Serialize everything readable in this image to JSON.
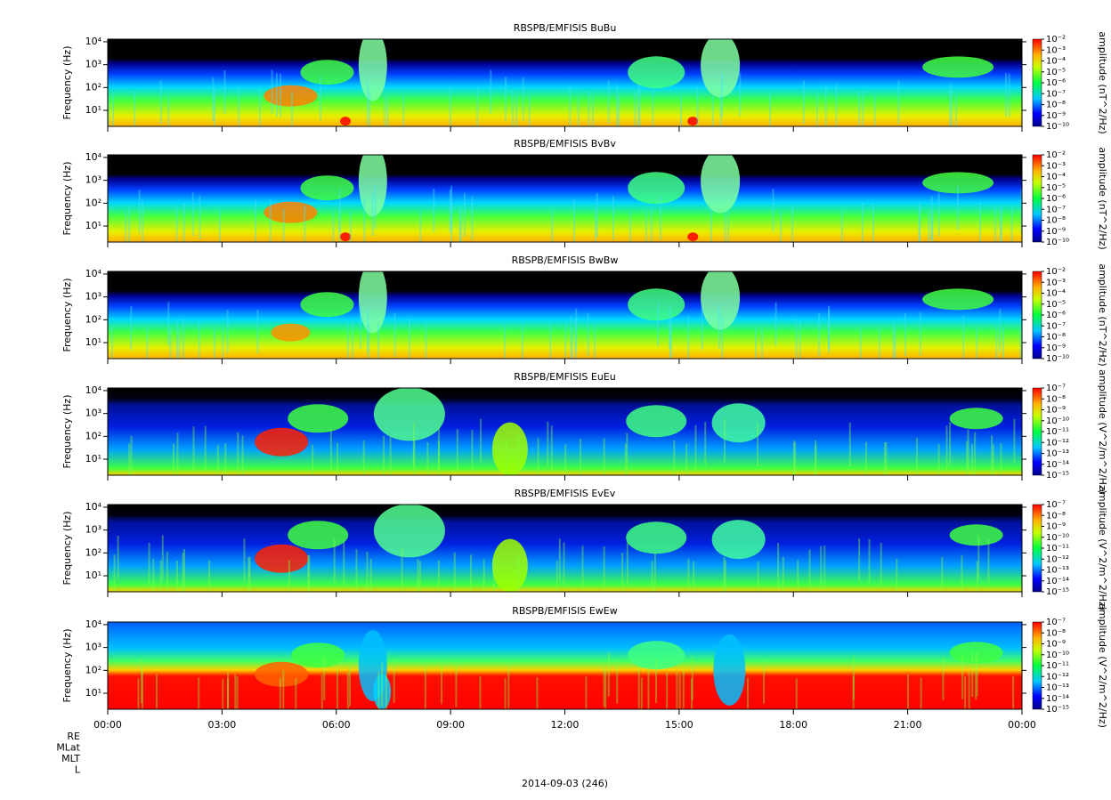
{
  "chart_data": [
    {
      "type": "spectrogram",
      "title": "RBSPB/EMFISIS  BuBu",
      "y_label": "Frequency (Hz)",
      "log_y": true,
      "ylim": [
        2,
        13000
      ],
      "yticks": [
        {
          "value": 10,
          "label": "10¹"
        },
        {
          "value": 100,
          "label": "10²"
        },
        {
          "value": 1000,
          "label": "10³"
        },
        {
          "value": 10000,
          "label": "10⁴"
        }
      ],
      "colorbar_label": "amplitude (nT^2/Hz)",
      "zlim": [
        1e-10,
        0.01
      ],
      "zticks": [
        {
          "value": 1e-10,
          "label": "10⁻¹⁰"
        },
        {
          "value": 1e-09,
          "label": "10⁻⁹"
        },
        {
          "value": 1e-08,
          "label": "10⁻⁸"
        },
        {
          "value": 1e-07,
          "label": "10⁻⁷"
        },
        {
          "value": 1e-06,
          "label": "10⁻⁶"
        },
        {
          "value": 1e-05,
          "label": "10⁻⁵"
        },
        {
          "value": 0.0001,
          "label": "10⁻⁴"
        },
        {
          "value": 0.001,
          "label": "10⁻³"
        },
        {
          "value": 0.01,
          "label": "10⁻²"
        }
      ]
    },
    {
      "type": "spectrogram",
      "title": "RBSPB/EMFISIS  BvBv",
      "y_label": "Frequency (Hz)",
      "log_y": true,
      "ylim": [
        2,
        13000
      ],
      "yticks": [
        {
          "value": 10,
          "label": "10¹"
        },
        {
          "value": 100,
          "label": "10²"
        },
        {
          "value": 1000,
          "label": "10³"
        },
        {
          "value": 10000,
          "label": "10⁴"
        }
      ],
      "colorbar_label": "amplitude (nT^2/Hz)",
      "zlim": [
        1e-10,
        0.01
      ],
      "zticks": [
        {
          "value": 1e-10,
          "label": "10⁻¹⁰"
        },
        {
          "value": 1e-09,
          "label": "10⁻⁹"
        },
        {
          "value": 1e-08,
          "label": "10⁻⁸"
        },
        {
          "value": 1e-07,
          "label": "10⁻⁷"
        },
        {
          "value": 1e-06,
          "label": "10⁻⁶"
        },
        {
          "value": 1e-05,
          "label": "10⁻⁵"
        },
        {
          "value": 0.0001,
          "label": "10⁻⁴"
        },
        {
          "value": 0.001,
          "label": "10⁻³"
        },
        {
          "value": 0.01,
          "label": "10⁻²"
        }
      ]
    },
    {
      "type": "spectrogram",
      "title": "RBSPB/EMFISIS  BwBw",
      "y_label": "Frequency (Hz)",
      "log_y": true,
      "ylim": [
        2,
        13000
      ],
      "yticks": [
        {
          "value": 10,
          "label": "10¹"
        },
        {
          "value": 100,
          "label": "10²"
        },
        {
          "value": 1000,
          "label": "10³"
        },
        {
          "value": 10000,
          "label": "10⁴"
        }
      ],
      "colorbar_label": "amplitude (nT^2/Hz)",
      "zlim": [
        1e-10,
        0.01
      ],
      "zticks": [
        {
          "value": 1e-10,
          "label": "10⁻¹⁰"
        },
        {
          "value": 1e-09,
          "label": "10⁻⁹"
        },
        {
          "value": 1e-08,
          "label": "10⁻⁸"
        },
        {
          "value": 1e-07,
          "label": "10⁻⁷"
        },
        {
          "value": 1e-06,
          "label": "10⁻⁶"
        },
        {
          "value": 1e-05,
          "label": "10⁻⁵"
        },
        {
          "value": 0.0001,
          "label": "10⁻⁴"
        },
        {
          "value": 0.001,
          "label": "10⁻³"
        },
        {
          "value": 0.01,
          "label": "10⁻²"
        }
      ]
    },
    {
      "type": "spectrogram",
      "title": "RBSPB/EMFISIS  EuEu",
      "y_label": "Frequency (Hz)",
      "log_y": true,
      "ylim": [
        2,
        13000
      ],
      "yticks": [
        {
          "value": 10,
          "label": "10¹"
        },
        {
          "value": 100,
          "label": "10²"
        },
        {
          "value": 1000,
          "label": "10³"
        },
        {
          "value": 10000,
          "label": "10⁴"
        }
      ],
      "colorbar_label": "amplitude (V^2/m^2/Hz)",
      "zlim": [
        1e-15,
        1e-07
      ],
      "zticks": [
        {
          "value": 1e-15,
          "label": "10⁻¹⁵"
        },
        {
          "value": 1e-14,
          "label": "10⁻¹⁴"
        },
        {
          "value": 1e-13,
          "label": "10⁻¹³"
        },
        {
          "value": 1e-12,
          "label": "10⁻¹²"
        },
        {
          "value": 1e-11,
          "label": "10⁻¹¹"
        },
        {
          "value": 1e-10,
          "label": "10⁻¹⁰"
        },
        {
          "value": 1e-09,
          "label": "10⁻⁹"
        },
        {
          "value": 1e-08,
          "label": "10⁻⁸"
        },
        {
          "value": 1e-07,
          "label": "10⁻⁷"
        }
      ]
    },
    {
      "type": "spectrogram",
      "title": "RBSPB/EMFISIS  EvEv",
      "y_label": "Frequency (Hz)",
      "log_y": true,
      "ylim": [
        2,
        13000
      ],
      "yticks": [
        {
          "value": 10,
          "label": "10¹"
        },
        {
          "value": 100,
          "label": "10²"
        },
        {
          "value": 1000,
          "label": "10³"
        },
        {
          "value": 10000,
          "label": "10⁴"
        }
      ],
      "colorbar_label": "amplitude (V^2/m^2/Hz)",
      "zlim": [
        1e-15,
        1e-07
      ],
      "zticks": [
        {
          "value": 1e-15,
          "label": "10⁻¹⁵"
        },
        {
          "value": 1e-14,
          "label": "10⁻¹⁴"
        },
        {
          "value": 1e-13,
          "label": "10⁻¹³"
        },
        {
          "value": 1e-12,
          "label": "10⁻¹²"
        },
        {
          "value": 1e-11,
          "label": "10⁻¹¹"
        },
        {
          "value": 1e-10,
          "label": "10⁻¹⁰"
        },
        {
          "value": 1e-09,
          "label": "10⁻⁹"
        },
        {
          "value": 1e-08,
          "label": "10⁻⁸"
        },
        {
          "value": 1e-07,
          "label": "10⁻⁷"
        }
      ]
    },
    {
      "type": "spectrogram",
      "title": "RBSPB/EMFISIS  EwEw",
      "y_label": "Frequency (Hz)",
      "log_y": true,
      "ylim": [
        2,
        13000
      ],
      "yticks": [
        {
          "value": 10,
          "label": "10¹"
        },
        {
          "value": 100,
          "label": "10²"
        },
        {
          "value": 1000,
          "label": "10³"
        },
        {
          "value": 10000,
          "label": "10⁴"
        }
      ],
      "colorbar_label": "amplitude (V^2/m^2/Hz)",
      "zlim": [
        1e-15,
        1e-07
      ],
      "zticks": [
        {
          "value": 1e-15,
          "label": "10⁻¹⁵"
        },
        {
          "value": 1e-14,
          "label": "10⁻¹⁴"
        },
        {
          "value": 1e-13,
          "label": "10⁻¹³"
        },
        {
          "value": 1e-12,
          "label": "10⁻¹²"
        },
        {
          "value": 1e-11,
          "label": "10⁻¹¹"
        },
        {
          "value": 1e-10,
          "label": "10⁻¹⁰"
        },
        {
          "value": 1e-09,
          "label": "10⁻⁹"
        },
        {
          "value": 1e-08,
          "label": "10⁻⁸"
        },
        {
          "value": 1e-07,
          "label": "10⁻⁷"
        }
      ],
      "xlim": [
        0,
        24
      ],
      "xticks": [
        {
          "value": 0,
          "label": "00:00"
        },
        {
          "value": 3,
          "label": "03:00"
        },
        {
          "value": 6,
          "label": "06:00"
        },
        {
          "value": 9,
          "label": "09:00"
        },
        {
          "value": 12,
          "label": "12:00"
        },
        {
          "value": 15,
          "label": "15:00"
        },
        {
          "value": 18,
          "label": "18:00"
        },
        {
          "value": 21,
          "label": "21:00"
        },
        {
          "value": 24,
          "label": "00:00"
        }
      ],
      "ephemeris_labels": [
        "RE",
        "MLat",
        "MLT",
        "L"
      ],
      "x_label": "2014-09-03 (246)"
    }
  ]
}
